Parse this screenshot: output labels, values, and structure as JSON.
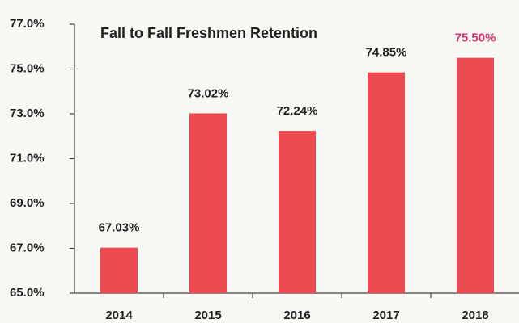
{
  "chart_data": {
    "type": "bar",
    "title": "Fall to Fall Freshmen Retention",
    "categories": [
      "2014",
      "2015",
      "2016",
      "2017",
      "2018"
    ],
    "values": [
      67.03,
      73.02,
      72.24,
      74.85,
      75.5
    ],
    "value_labels": [
      "67.03%",
      "73.02%",
      "72.24%",
      "74.85%",
      "75.50%"
    ],
    "value_label_colors": [
      "#222222",
      "#222222",
      "#222222",
      "#222222",
      "#d6336c"
    ],
    "color": "#ee4a52",
    "ylim": [
      65,
      77
    ],
    "yticks": [
      {
        "value": 65,
        "label": "65.0%"
      },
      {
        "value": 67,
        "label": "67.0%"
      },
      {
        "value": 69,
        "label": "69.0%"
      },
      {
        "value": 71,
        "label": "71.0%"
      },
      {
        "value": 73,
        "label": "73.0%"
      },
      {
        "value": 75,
        "label": "75.0%"
      },
      {
        "value": 77,
        "label": "77.0%"
      }
    ],
    "grid": false
  }
}
